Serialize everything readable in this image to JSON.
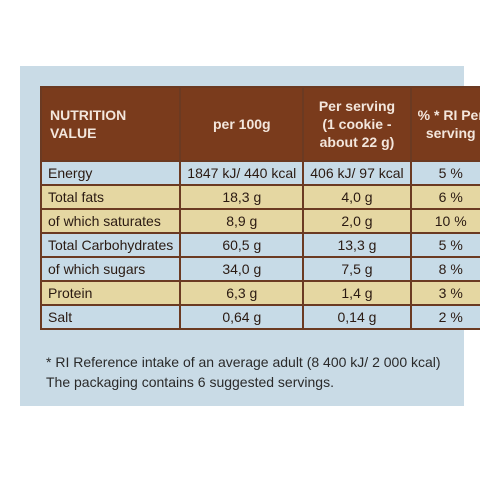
{
  "table": {
    "headers": [
      "NUTRITION\nVALUE",
      "per 100g",
      "Per serving\n(1 cookie -\nabout 22 g)",
      "% * RI Per\nserving"
    ],
    "rows": [
      {
        "label": "Energy",
        "per100": "1847 kJ/ 440 kcal",
        "serving": "406 kJ/ 97 kcal",
        "ri": "5 %",
        "shade": "light"
      },
      {
        "label": "Total fats",
        "per100": "18,3 g",
        "serving": "4,0 g",
        "ri": "6 %",
        "shade": "yellow"
      },
      {
        "label": "of which saturates",
        "per100": "8,9 g",
        "serving": "2,0 g",
        "ri": "10 %",
        "shade": "yellow"
      },
      {
        "label": "Total Carbohydrates",
        "per100": "60,5 g",
        "serving": "13,3 g",
        "ri": "5 %",
        "shade": "light"
      },
      {
        "label": "of which sugars",
        "per100": "34,0 g",
        "serving": "7,5 g",
        "ri": "8 %",
        "shade": "light"
      },
      {
        "label": "Protein",
        "per100": "6,3 g",
        "serving": "1,4 g",
        "ri": "3 %",
        "shade": "yellow"
      },
      {
        "label": "Salt",
        "per100": "0,64 g",
        "serving": "0,14 g",
        "ri": "2 %",
        "shade": "light"
      }
    ]
  },
  "footer": {
    "line1": "* RI Reference intake of an average adult (8 400 kJ/ 2 000 kcal)",
    "line2": "The packaging contains 6 suggested servings."
  },
  "colors": {
    "header_bg": "#7a3b1c",
    "row_light": "#c7dbe7",
    "row_yellow": "#e5d7a2",
    "border": "#6b3a22"
  }
}
